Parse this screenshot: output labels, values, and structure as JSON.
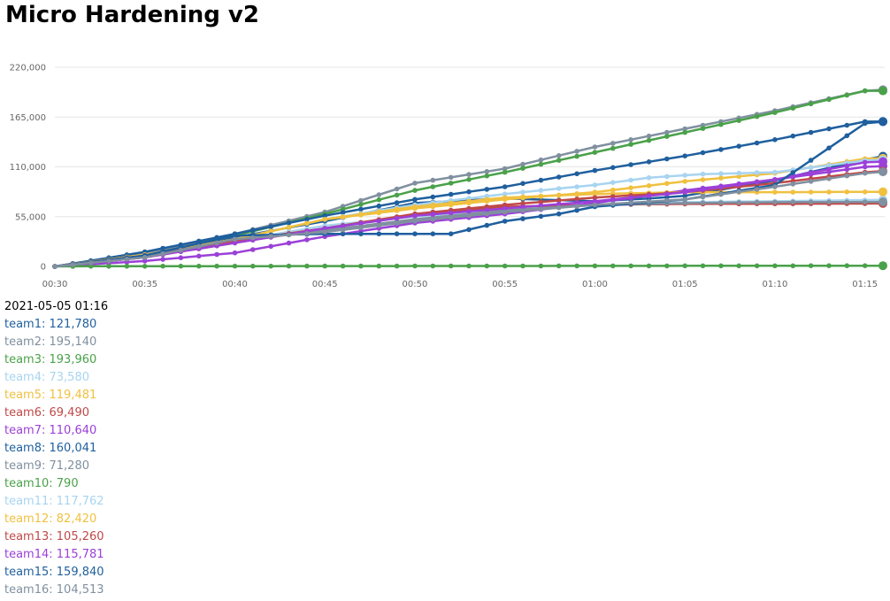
{
  "page": {
    "title": "Micro Hardening v2"
  },
  "colors": {
    "palette": [
      "#1f5f9e",
      "#8090a0",
      "#4aa14a",
      "#a8d4f0",
      "#f0c040",
      "#c04848",
      "#9b40d8"
    ],
    "grid": "#e6e6e6",
    "axis_text": "#666666"
  },
  "legend": {
    "timestamp": "2021-05-05 01:16",
    "entries": [
      {
        "name": "team1",
        "value": "121,780",
        "color": "#1f5f9e"
      },
      {
        "name": "team2",
        "value": "195,140",
        "color": "#8090a0"
      },
      {
        "name": "team3",
        "value": "193,960",
        "color": "#4aa14a"
      },
      {
        "name": "team4",
        "value": "73,580",
        "color": "#a8d4f0"
      },
      {
        "name": "team5",
        "value": "119,481",
        "color": "#f0c040"
      },
      {
        "name": "team6",
        "value": "69,490",
        "color": "#c04848"
      },
      {
        "name": "team7",
        "value": "110,640",
        "color": "#9b40d8"
      },
      {
        "name": "team8",
        "value": "160,041",
        "color": "#1f5f9e"
      },
      {
        "name": "team9",
        "value": "71,280",
        "color": "#8090a0"
      },
      {
        "name": "team10",
        "value": "790",
        "color": "#4aa14a"
      },
      {
        "name": "team11",
        "value": "117,762",
        "color": "#a8d4f0"
      },
      {
        "name": "team12",
        "value": "82,420",
        "color": "#f0c040"
      },
      {
        "name": "team13",
        "value": "105,260",
        "color": "#c04848"
      },
      {
        "name": "team14",
        "value": "115,781",
        "color": "#9b40d8"
      },
      {
        "name": "team15",
        "value": "159,840",
        "color": "#1f5f9e"
      },
      {
        "name": "team16",
        "value": "104,513",
        "color": "#8090a0"
      }
    ]
  },
  "chart_data": {
    "type": "line",
    "title": "Micro Hardening v2",
    "xlabel": "",
    "ylabel": "",
    "x_unit": "minutes",
    "xlim": [
      0,
      46
    ],
    "ylim": [
      0,
      220000
    ],
    "yticks": [
      0,
      55000,
      110000,
      165000,
      220000
    ],
    "ytick_labels": [
      "0",
      "55,000",
      "110,000",
      "165,000",
      "220,000"
    ],
    "xticks": [
      0,
      5,
      10,
      15,
      20,
      25,
      30,
      35,
      40,
      45
    ],
    "xtick_labels": [
      "00:30",
      "00:35",
      "00:40",
      "00:45",
      "00:50",
      "00:55",
      "01:00",
      "01:05",
      "01:10",
      "01:15"
    ],
    "grid": true,
    "legend_position": "below",
    "point_interval_minutes": 1,
    "series": [
      {
        "name": "team1",
        "color": "#1f5f9e",
        "anchors": [
          [
            0,
            0
          ],
          [
            5,
            14000
          ],
          [
            10,
            32000
          ],
          [
            15,
            50000
          ],
          [
            20,
            70000
          ],
          [
            25,
            75000
          ],
          [
            30,
            72000
          ],
          [
            33,
            75000
          ],
          [
            35,
            78000
          ],
          [
            40,
            95000
          ],
          [
            45,
            118000
          ],
          [
            46,
            121780
          ]
        ]
      },
      {
        "name": "team2",
        "color": "#8090a0",
        "anchors": [
          [
            0,
            0
          ],
          [
            5,
            14000
          ],
          [
            10,
            36000
          ],
          [
            15,
            60000
          ],
          [
            20,
            92000
          ],
          [
            25,
            108000
          ],
          [
            30,
            132000
          ],
          [
            35,
            152000
          ],
          [
            40,
            172000
          ],
          [
            45,
            194000
          ],
          [
            46,
            195140
          ]
        ]
      },
      {
        "name": "team3",
        "color": "#4aa14a",
        "anchors": [
          [
            0,
            0
          ],
          [
            5,
            12000
          ],
          [
            10,
            34000
          ],
          [
            15,
            58000
          ],
          [
            20,
            84000
          ],
          [
            25,
            104000
          ],
          [
            30,
            126000
          ],
          [
            35,
            148000
          ],
          [
            40,
            170000
          ],
          [
            45,
            194000
          ],
          [
            46,
            193960
          ]
        ]
      },
      {
        "name": "team4",
        "color": "#a8d4f0",
        "anchors": [
          [
            0,
            0
          ],
          [
            5,
            11000
          ],
          [
            10,
            28000
          ],
          [
            15,
            45000
          ],
          [
            20,
            55000
          ],
          [
            25,
            62000
          ],
          [
            30,
            68000
          ],
          [
            35,
            71000
          ],
          [
            40,
            72000
          ],
          [
            46,
            73580
          ]
        ]
      },
      {
        "name": "team5",
        "color": "#f0c040",
        "anchors": [
          [
            0,
            0
          ],
          [
            5,
            12000
          ],
          [
            10,
            30000
          ],
          [
            15,
            52000
          ],
          [
            20,
            64000
          ],
          [
            25,
            74000
          ],
          [
            30,
            82000
          ],
          [
            35,
            94000
          ],
          [
            40,
            103000
          ],
          [
            45,
            119000
          ],
          [
            46,
            119481
          ]
        ]
      },
      {
        "name": "team6",
        "color": "#c04848",
        "anchors": [
          [
            0,
            0
          ],
          [
            5,
            10000
          ],
          [
            10,
            26000
          ],
          [
            15,
            42000
          ],
          [
            20,
            58000
          ],
          [
            25,
            66000
          ],
          [
            30,
            68000
          ],
          [
            35,
            69000
          ],
          [
            46,
            69490
          ]
        ]
      },
      {
        "name": "team7",
        "color": "#9b40d8",
        "anchors": [
          [
            0,
            0
          ],
          [
            5,
            6000
          ],
          [
            10,
            15000
          ],
          [
            15,
            33000
          ],
          [
            20,
            48000
          ],
          [
            25,
            58000
          ],
          [
            30,
            70000
          ],
          [
            35,
            84000
          ],
          [
            40,
            96000
          ],
          [
            45,
            110000
          ],
          [
            46,
            110640
          ]
        ]
      },
      {
        "name": "team8",
        "color": "#1f5f9e",
        "anchors": [
          [
            0,
            0
          ],
          [
            5,
            16000
          ],
          [
            10,
            36000
          ],
          [
            15,
            56000
          ],
          [
            20,
            74000
          ],
          [
            25,
            88000
          ],
          [
            30,
            106000
          ],
          [
            35,
            122000
          ],
          [
            40,
            140000
          ],
          [
            45,
            160000
          ],
          [
            46,
            160041
          ]
        ]
      },
      {
        "name": "team9",
        "color": "#8090a0",
        "anchors": [
          [
            0,
            0
          ],
          [
            5,
            12000
          ],
          [
            10,
            28000
          ],
          [
            15,
            40000
          ],
          [
            20,
            52000
          ],
          [
            25,
            62000
          ],
          [
            30,
            68000
          ],
          [
            35,
            70000
          ],
          [
            40,
            71000
          ],
          [
            46,
            71280
          ]
        ]
      },
      {
        "name": "team10",
        "color": "#4aa14a",
        "anchors": [
          [
            0,
            0
          ],
          [
            2,
            200
          ],
          [
            46,
            790
          ]
        ]
      },
      {
        "name": "team11",
        "color": "#a8d4f0",
        "anchors": [
          [
            0,
            0
          ],
          [
            5,
            12000
          ],
          [
            10,
            30000
          ],
          [
            15,
            52000
          ],
          [
            20,
            68000
          ],
          [
            25,
            80000
          ],
          [
            30,
            90000
          ],
          [
            33,
            98000
          ],
          [
            36,
            102000
          ],
          [
            40,
            104000
          ],
          [
            45,
            117000
          ],
          [
            46,
            117762
          ]
        ]
      },
      {
        "name": "team12",
        "color": "#f0c040",
        "anchors": [
          [
            0,
            0
          ],
          [
            5,
            13000
          ],
          [
            10,
            30000
          ],
          [
            15,
            52000
          ],
          [
            20,
            66000
          ],
          [
            25,
            76000
          ],
          [
            30,
            80000
          ],
          [
            35,
            82000
          ],
          [
            40,
            82000
          ],
          [
            46,
            82420
          ]
        ]
      },
      {
        "name": "team13",
        "color": "#c04848",
        "anchors": [
          [
            0,
            0
          ],
          [
            5,
            12000
          ],
          [
            10,
            28000
          ],
          [
            15,
            42000
          ],
          [
            20,
            58000
          ],
          [
            25,
            68000
          ],
          [
            30,
            76000
          ],
          [
            35,
            82000
          ],
          [
            40,
            92000
          ],
          [
            45,
            104000
          ],
          [
            46,
            105260
          ]
        ]
      },
      {
        "name": "team14",
        "color": "#9b40d8",
        "anchors": [
          [
            0,
            0
          ],
          [
            5,
            10000
          ],
          [
            10,
            26000
          ],
          [
            15,
            42000
          ],
          [
            20,
            56000
          ],
          [
            25,
            64000
          ],
          [
            30,
            72000
          ],
          [
            35,
            82000
          ],
          [
            40,
            96000
          ],
          [
            45,
            115000
          ],
          [
            46,
            115781
          ]
        ]
      },
      {
        "name": "team15",
        "color": "#1f5f9e",
        "anchors": [
          [
            0,
            0
          ],
          [
            5,
            12000
          ],
          [
            10,
            34000
          ],
          [
            15,
            36000
          ],
          [
            20,
            36000
          ],
          [
            22,
            36000
          ],
          [
            25,
            50000
          ],
          [
            28,
            58000
          ],
          [
            30,
            66000
          ],
          [
            35,
            74000
          ],
          [
            40,
            90000
          ],
          [
            45,
            158000
          ],
          [
            46,
            159840
          ]
        ]
      },
      {
        "name": "team16",
        "color": "#8090a0",
        "anchors": [
          [
            0,
            0
          ],
          [
            5,
            10000
          ],
          [
            10,
            30000
          ],
          [
            15,
            38000
          ],
          [
            20,
            50000
          ],
          [
            25,
            60000
          ],
          [
            30,
            68000
          ],
          [
            35,
            74000
          ],
          [
            40,
            88000
          ],
          [
            45,
            103000
          ],
          [
            46,
            104513
          ]
        ]
      }
    ]
  }
}
